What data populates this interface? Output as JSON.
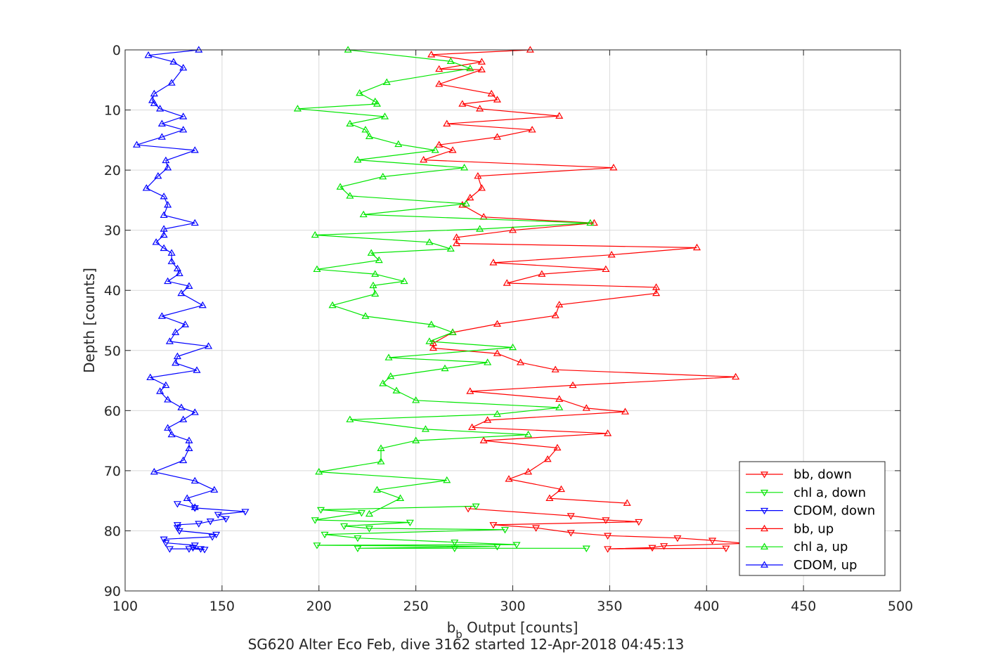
{
  "chart_data": {
    "type": "line",
    "title": "",
    "xlabel_main": "b",
    "xlabel_sub": "b",
    "xlabel_rest": " Output [counts]",
    "ylabel": "Depth [counts]",
    "caption": "SG620 Alter Eco Feb, dive 3162 started 12-Apr-2018 04:45:13",
    "xlim": [
      100,
      500
    ],
    "ylim": [
      0,
      90
    ],
    "y_reversed": true,
    "grid": true,
    "legend_position": "bottom-right",
    "xticks": [
      100,
      150,
      200,
      250,
      300,
      350,
      400,
      450,
      500
    ],
    "yticks": [
      0,
      10,
      20,
      30,
      40,
      50,
      60,
      70,
      80,
      90
    ],
    "series": [
      {
        "name": "bb, down",
        "color": "#ff0000",
        "marker": "triangle-down",
        "points": [
          [
            277,
            76.3
          ],
          [
            330,
            77.5
          ],
          [
            348,
            78.2
          ],
          [
            365,
            78.5
          ],
          [
            290,
            79
          ],
          [
            312,
            79.5
          ],
          [
            330,
            80.3
          ],
          [
            349,
            80.8
          ],
          [
            385,
            81.2
          ],
          [
            403,
            81.6
          ],
          [
            420,
            82.1
          ],
          [
            378,
            82.5
          ],
          [
            372,
            82.8
          ],
          [
            349,
            83
          ],
          [
            410,
            82.9
          ]
        ]
      },
      {
        "name": "chl a, down",
        "color": "#00e600",
        "marker": "triangle-down",
        "points": [
          [
            281,
            75.9
          ],
          [
            201,
            76.5
          ],
          [
            222,
            77
          ],
          [
            198,
            78.2
          ],
          [
            247,
            78.6
          ],
          [
            213,
            79.2
          ],
          [
            226,
            79.6
          ],
          [
            296,
            79.8
          ],
          [
            203,
            80.6
          ],
          [
            220,
            81.2
          ],
          [
            270,
            81.9
          ],
          [
            302,
            82.3
          ],
          [
            199,
            82.4
          ],
          [
            292,
            82.6
          ],
          [
            220,
            82.9
          ],
          [
            270,
            82.9
          ],
          [
            338,
            82.9
          ]
        ]
      },
      {
        "name": "CDOM, down",
        "color": "#0000ff",
        "marker": "triangle-down",
        "points": [
          [
            127,
            75.5
          ],
          [
            136,
            76.2
          ],
          [
            162,
            76.8
          ],
          [
            148,
            77.3
          ],
          [
            152,
            78
          ],
          [
            144,
            78.4
          ],
          [
            138,
            78.8
          ],
          [
            127,
            79
          ],
          [
            127,
            79.5
          ],
          [
            128,
            80
          ],
          [
            147,
            80.6
          ],
          [
            145,
            81
          ],
          [
            120,
            81.4
          ],
          [
            121,
            82
          ],
          [
            136,
            82.4
          ],
          [
            135,
            82.8
          ],
          [
            139,
            83
          ],
          [
            141,
            83.1
          ],
          [
            133,
            83
          ],
          [
            123,
            83
          ]
        ]
      },
      {
        "name": "bb, up",
        "color": "#ff0000",
        "marker": "triangle-up",
        "points": [
          [
            309,
            0
          ],
          [
            258,
            0.8
          ],
          [
            284,
            2
          ],
          [
            262,
            3.2
          ],
          [
            284,
            3.3
          ],
          [
            262,
            5.7
          ],
          [
            289,
            7.3
          ],
          [
            292,
            8.3
          ],
          [
            274,
            9
          ],
          [
            283,
            9.8
          ],
          [
            324,
            11
          ],
          [
            266,
            12.3
          ],
          [
            310,
            13.3
          ],
          [
            292,
            14.5
          ],
          [
            262,
            15.8
          ],
          [
            269,
            16.7
          ],
          [
            254,
            18.3
          ],
          [
            352,
            19.6
          ],
          [
            282,
            21
          ],
          [
            284,
            23
          ],
          [
            278,
            24.6
          ],
          [
            274,
            25.8
          ],
          [
            285,
            27.8
          ],
          [
            342,
            28.8
          ],
          [
            300,
            30
          ],
          [
            271,
            31.2
          ],
          [
            271,
            32.2
          ],
          [
            395,
            32.9
          ],
          [
            351,
            34.1
          ],
          [
            290,
            35.4
          ],
          [
            348,
            36.5
          ],
          [
            315,
            37.3
          ],
          [
            297,
            38.8
          ],
          [
            374,
            39.5
          ],
          [
            374,
            40.5
          ],
          [
            324,
            42.4
          ],
          [
            322,
            44.2
          ],
          [
            292,
            45.6
          ],
          [
            269,
            47
          ],
          [
            259,
            48.8
          ],
          [
            259,
            49.6
          ],
          [
            292,
            50.5
          ],
          [
            304,
            52
          ],
          [
            322,
            53.2
          ],
          [
            415,
            54.4
          ],
          [
            331,
            55.8
          ],
          [
            278,
            56.8
          ],
          [
            324,
            58.1
          ],
          [
            338,
            59.6
          ],
          [
            358,
            60.2
          ],
          [
            287,
            61.6
          ],
          [
            279,
            62.8
          ],
          [
            349,
            63.8
          ],
          [
            285,
            65
          ],
          [
            323,
            66.2
          ],
          [
            318,
            68.1
          ],
          [
            308,
            70.2
          ],
          [
            298,
            71.4
          ],
          [
            325,
            73.1
          ],
          [
            319,
            74.6
          ],
          [
            359,
            75.4
          ]
        ]
      },
      {
        "name": "chl a, up",
        "color": "#00e600",
        "marker": "triangle-up",
        "points": [
          [
            215,
            0
          ],
          [
            268,
            1.9
          ],
          [
            278,
            3.1
          ],
          [
            235,
            5.4
          ],
          [
            221,
            7.2
          ],
          [
            229,
            8.6
          ],
          [
            230,
            9
          ],
          [
            189,
            9.8
          ],
          [
            234,
            11.1
          ],
          [
            216,
            12.3
          ],
          [
            224,
            13.3
          ],
          [
            226,
            14.4
          ],
          [
            241,
            15.7
          ],
          [
            260,
            16.7
          ],
          [
            220,
            18.3
          ],
          [
            275,
            19.6
          ],
          [
            233,
            21.1
          ],
          [
            211,
            22.8
          ],
          [
            216,
            24.3
          ],
          [
            276,
            25.6
          ],
          [
            223,
            27.4
          ],
          [
            340,
            28.8
          ],
          [
            283,
            29.8
          ],
          [
            198,
            30.8
          ],
          [
            257,
            32
          ],
          [
            268,
            33.1
          ],
          [
            227,
            33.8
          ],
          [
            231,
            35
          ],
          [
            199,
            36.5
          ],
          [
            229,
            37.3
          ],
          [
            244,
            38.5
          ],
          [
            228,
            39.2
          ],
          [
            229,
            40.6
          ],
          [
            207,
            42.5
          ],
          [
            224,
            44.3
          ],
          [
            258,
            45.7
          ],
          [
            269,
            47
          ],
          [
            257,
            48.5
          ],
          [
            300,
            49.5
          ],
          [
            236,
            51.2
          ],
          [
            287,
            52
          ],
          [
            265,
            53
          ],
          [
            237,
            54.3
          ],
          [
            233,
            55.5
          ],
          [
            240,
            56.7
          ],
          [
            250,
            58.3
          ],
          [
            324,
            59.5
          ],
          [
            292,
            60.6
          ],
          [
            216,
            61.5
          ],
          [
            255,
            63.1
          ],
          [
            308,
            64
          ],
          [
            250,
            65
          ],
          [
            232,
            66.3
          ],
          [
            232,
            68.5
          ],
          [
            200,
            70.2
          ],
          [
            266,
            71.6
          ],
          [
            230,
            73.2
          ],
          [
            242,
            74.6
          ],
          [
            226,
            77.2
          ]
        ]
      },
      {
        "name": "CDOM, up",
        "color": "#0000ff",
        "marker": "triangle-up",
        "points": [
          [
            138,
            0
          ],
          [
            112,
            0.9
          ],
          [
            125,
            2
          ],
          [
            130,
            3
          ],
          [
            124,
            5.5
          ],
          [
            115,
            7.3
          ],
          [
            114,
            8.4
          ],
          [
            115,
            8.9
          ],
          [
            118,
            9.8
          ],
          [
            130,
            11.1
          ],
          [
            119,
            12.3
          ],
          [
            130,
            13.3
          ],
          [
            119,
            14.5
          ],
          [
            106,
            15.8
          ],
          [
            136,
            16.7
          ],
          [
            121,
            18.4
          ],
          [
            122,
            19.6
          ],
          [
            117,
            21
          ],
          [
            111,
            23
          ],
          [
            120,
            24.4
          ],
          [
            122,
            25.8
          ],
          [
            120,
            27.5
          ],
          [
            136,
            28.8
          ],
          [
            120,
            29.8
          ],
          [
            120,
            30.8
          ],
          [
            116,
            32
          ],
          [
            120,
            33
          ],
          [
            124,
            33.8
          ],
          [
            124,
            35.2
          ],
          [
            127,
            36.4
          ],
          [
            128,
            37.2
          ],
          [
            122,
            38.5
          ],
          [
            133,
            39.3
          ],
          [
            129,
            40.5
          ],
          [
            140,
            42.5
          ],
          [
            119,
            44.3
          ],
          [
            131,
            45.7
          ],
          [
            126,
            47
          ],
          [
            123,
            48.5
          ],
          [
            143,
            49.3
          ],
          [
            127,
            51
          ],
          [
            126,
            52.1
          ],
          [
            137,
            53.3
          ],
          [
            113,
            54.5
          ],
          [
            121,
            55.8
          ],
          [
            118,
            56.8
          ],
          [
            122,
            58.2
          ],
          [
            129,
            59.5
          ],
          [
            136,
            60.3
          ],
          [
            130,
            61.5
          ],
          [
            122,
            62.9
          ],
          [
            124,
            64
          ],
          [
            133,
            65
          ],
          [
            133,
            66.3
          ],
          [
            130,
            68.3
          ],
          [
            115,
            70.2
          ],
          [
            136,
            71.7
          ],
          [
            146,
            73.2
          ],
          [
            132,
            74.6
          ],
          [
            136,
            76.1
          ]
        ]
      }
    ]
  }
}
